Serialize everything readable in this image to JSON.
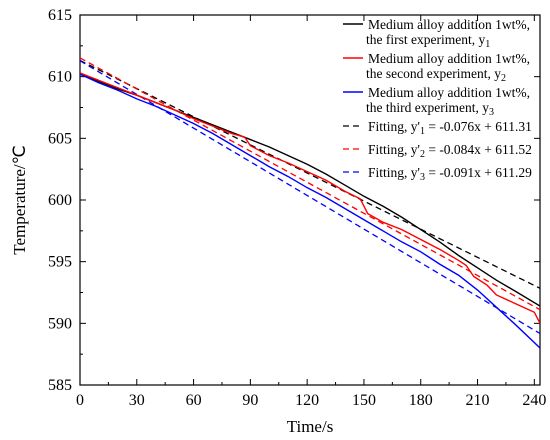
{
  "chart_data": {
    "type": "line",
    "xlabel": "Time/s",
    "ylabel": "Temperature/℃",
    "xlim": [
      0,
      243
    ],
    "ylim": [
      585,
      615
    ],
    "x_ticks": [
      0,
      30,
      60,
      90,
      120,
      150,
      180,
      210,
      240
    ],
    "y_ticks": [
      585,
      590,
      595,
      600,
      605,
      610,
      615
    ],
    "legend_position": "top-right",
    "series": [
      {
        "label_main": "Medium alloy addition 1wt%,",
        "label_sub_text": "the first experiment, y",
        "label_subscript": "1",
        "color": "#000000",
        "style": "solid",
        "x": [
          0,
          10,
          20,
          30,
          40,
          50,
          60,
          70,
          80,
          90,
          100,
          110,
          120,
          130,
          140,
          150,
          160,
          170,
          180,
          190,
          200,
          210,
          220,
          230,
          243
        ],
        "y": [
          610.3,
          609.6,
          609.0,
          608.5,
          607.9,
          607.3,
          606.7,
          606.1,
          605.5,
          604.9,
          604.3,
          603.6,
          602.9,
          602.1,
          601.2,
          600.3,
          599.5,
          598.6,
          597.6,
          596.6,
          595.5,
          594.5,
          593.5,
          592.6,
          591.4
        ]
      },
      {
        "label_main": "Medium alloy addition 1wt%,",
        "label_sub_text": "the second experiment, y",
        "label_subscript": "2",
        "color": "#ff0000",
        "style": "solid",
        "x": [
          0,
          10,
          20,
          30,
          40,
          50,
          60,
          70,
          80,
          87,
          90,
          100,
          110,
          120,
          130,
          140,
          148,
          152,
          160,
          170,
          180,
          190,
          200,
          204,
          208,
          215,
          220,
          230,
          240,
          243
        ],
        "y": [
          610.3,
          609.7,
          609.1,
          608.5,
          607.9,
          607.3,
          606.6,
          606.0,
          605.4,
          605.1,
          604.4,
          603.6,
          603.0,
          602.3,
          601.6,
          600.7,
          600.1,
          598.9,
          598.2,
          597.6,
          596.8,
          596.0,
          595.1,
          594.7,
          593.8,
          593.1,
          592.3,
          591.6,
          590.9,
          590.0
        ]
      },
      {
        "label_main": "Medium alloy addition 1wt%,",
        "label_sub_text": "the third experiment, y",
        "label_subscript": "3",
        "color": "#0000ff",
        "style": "solid",
        "x": [
          0,
          10,
          20,
          30,
          40,
          50,
          60,
          70,
          80,
          90,
          100,
          110,
          120,
          130,
          140,
          150,
          160,
          170,
          180,
          190,
          200,
          210,
          220,
          230,
          243
        ],
        "y": [
          610.2,
          609.5,
          608.9,
          608.2,
          607.6,
          606.9,
          606.2,
          605.4,
          604.5,
          603.6,
          602.7,
          601.9,
          601.0,
          600.2,
          599.3,
          598.4,
          597.5,
          596.6,
          595.8,
          594.8,
          593.9,
          592.7,
          591.3,
          589.9,
          588.0
        ]
      },
      {
        "label_text": "Fitting, y'",
        "label_subscript": "1",
        "label_eq": " = -0.076x + 611.31",
        "color": "#000000",
        "style": "dashed",
        "slope": -0.076,
        "intercept": 611.31
      },
      {
        "label_text": "Fitting, y'",
        "label_subscript": "2",
        "label_eq": " = -0.084x + 611.52",
        "color": "#ff0000",
        "style": "dashed",
        "slope": -0.084,
        "intercept": 611.52
      },
      {
        "label_text": "Fitting, y'",
        "label_subscript": "3",
        "label_eq": " = -0.091x + 611.29",
        "color": "#0000ff",
        "style": "dashed",
        "slope": -0.091,
        "intercept": 611.29
      }
    ]
  }
}
